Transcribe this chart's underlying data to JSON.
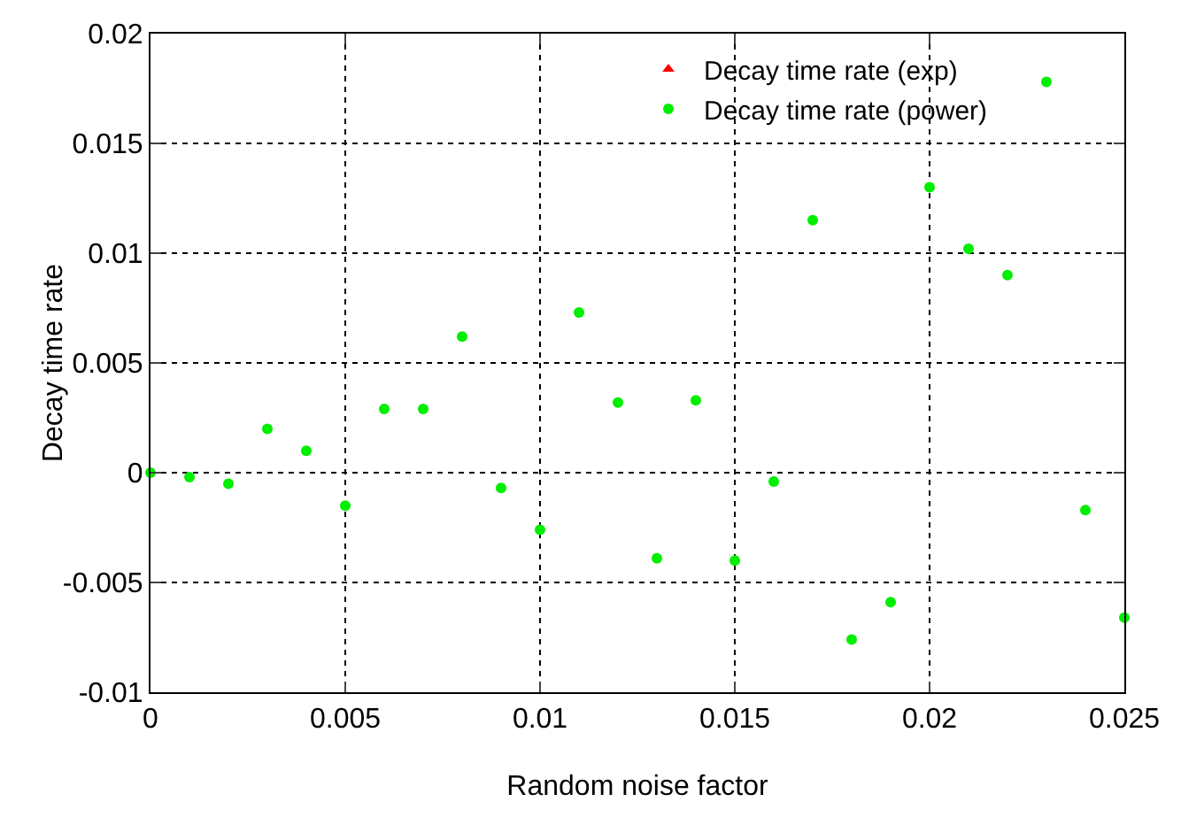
{
  "chart_data": {
    "type": "scatter",
    "xlabel": "Random noise factor",
    "ylabel": "Decay time rate",
    "x": [
      0,
      0.001,
      0.002,
      0.003,
      0.004,
      0.005,
      0.006,
      0.007,
      0.008,
      0.009,
      0.01,
      0.011,
      0.012,
      0.013,
      0.014,
      0.015,
      0.016,
      0.017,
      0.018,
      0.019,
      0.02,
      0.021,
      0.022,
      0.023,
      0.024,
      0.025
    ],
    "series": [
      {
        "name": "Decay time rate (exp)",
        "color": "#ff0000",
        "marker": "triangle",
        "values": [
          null,
          null,
          null,
          null,
          null,
          null,
          null,
          null,
          null,
          null,
          null,
          null,
          null,
          null,
          null,
          null,
          null,
          null,
          null,
          null,
          null,
          null,
          null,
          null,
          null,
          null
        ]
      },
      {
        "name": "Decay time rate (power)",
        "color": "#00ee00",
        "marker": "circle",
        "values": [
          0,
          -0.0002,
          -0.0005,
          0.002,
          0.001,
          -0.0015,
          0.0029,
          0.0029,
          0.0062,
          -0.0007,
          -0.0026,
          0.0073,
          0.0032,
          -0.0039,
          0.0033,
          -0.004,
          -0.0004,
          0.0115,
          -0.0076,
          -0.0059,
          0.013,
          0.0102,
          0.009,
          0.0178,
          -0.0017,
          -0.0066
        ]
      }
    ],
    "xlim": [
      0,
      0.025
    ],
    "xticks": [
      0,
      0.005,
      0.01,
      0.015,
      0.02,
      0.025
    ],
    "ylim": [
      -0.01,
      0.02
    ],
    "yticks": [
      -0.01,
      -0.005,
      0,
      0.005,
      0.01,
      0.015,
      0.02
    ],
    "grid": true,
    "legend": "top right"
  }
}
